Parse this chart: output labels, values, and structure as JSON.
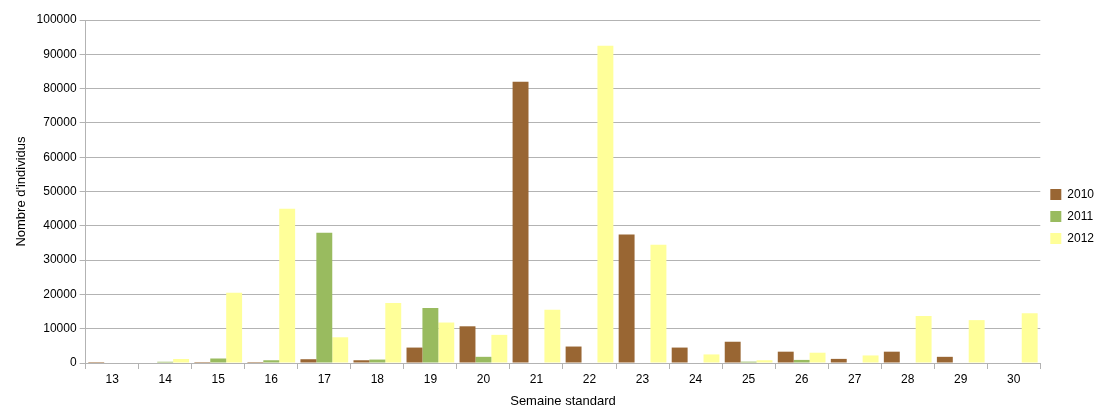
{
  "chart_data": {
    "type": "bar",
    "xlabel": "Semaine standard",
    "ylabel": "Nombre d'individus",
    "categories": [
      "13",
      "14",
      "15",
      "16",
      "17",
      "18",
      "19",
      "20",
      "21",
      "22",
      "23",
      "24",
      "25",
      "26",
      "27",
      "28",
      "29",
      "30"
    ],
    "series": [
      {
        "name": "2010",
        "color": "#996633",
        "values": [
          300,
          0,
          300,
          300,
          1100,
          800,
          4500,
          10700,
          82000,
          4800,
          37500,
          4500,
          6200,
          3300,
          1200,
          3300,
          1800,
          0
        ]
      },
      {
        "name": "2011",
        "color": "#99bb5f",
        "values": [
          0,
          400,
          1300,
          800,
          38000,
          1000,
          16000,
          1800,
          0,
          0,
          0,
          0,
          400,
          900,
          0,
          0,
          0,
          0
        ]
      },
      {
        "name": "2012",
        "color": "#ffff99",
        "values": [
          0,
          1200,
          20500,
          45000,
          7500,
          17500,
          11800,
          8200,
          15500,
          92500,
          34500,
          2500,
          800,
          3000,
          2200,
          13700,
          12500,
          14500
        ]
      }
    ],
    "ylim": [
      0,
      100000
    ],
    "yticks": [
      0,
      10000,
      20000,
      30000,
      40000,
      50000,
      60000,
      70000,
      80000,
      90000,
      100000
    ],
    "grid": "y",
    "legend": "right"
  }
}
